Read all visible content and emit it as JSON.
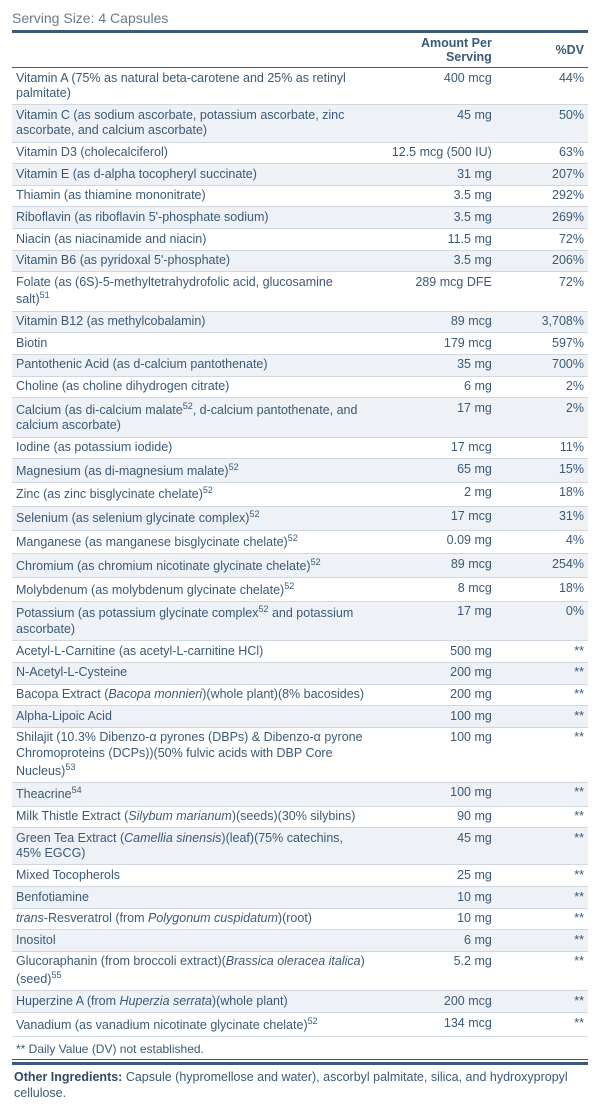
{
  "serving_size_label": "Serving Size: 4 Capsules",
  "headers": {
    "name": "",
    "amount": "Amount Per Serving",
    "dv": "%DV"
  },
  "footnote": "** Daily Value (DV) not established.",
  "other_label": "Other Ingredients:",
  "other_text": " Capsule (hypromellose and water), ascorbyl palmitate, silica, and hydroxypropyl cellulose.",
  "rows": [
    {
      "name": "Vitamin A (75% as natural beta-carotene and 25% as retinyl palmitate)",
      "amount": "400 mcg",
      "dv": "44%"
    },
    {
      "name": "Vitamin C (as sodium ascorbate, potassium ascorbate, zinc ascorbate, and calcium ascorbate)",
      "amount": "45 mg",
      "dv": "50%",
      "alt": true
    },
    {
      "name": "Vitamin D3 (cholecalciferol)",
      "amount": "12.5 mcg (500 IU)",
      "dv": "63%"
    },
    {
      "name": "Vitamin E (as d-alpha tocopheryl succinate)",
      "amount": "31 mg",
      "dv": "207%",
      "alt": true
    },
    {
      "name": "Thiamin (as thiamine mononitrate)",
      "amount": "3.5 mg",
      "dv": "292%"
    },
    {
      "name": "Riboflavin (as riboflavin 5'-phosphate sodium)",
      "amount": "3.5 mg",
      "dv": "269%",
      "alt": true
    },
    {
      "name": "Niacin (as niacinamide and niacin)",
      "amount": "11.5 mg",
      "dv": "72%"
    },
    {
      "name": "Vitamin B6 (as pyridoxal 5'-phosphate)",
      "amount": "3.5 mg",
      "dv": "206%",
      "alt": true
    },
    {
      "name": "Folate (as (6S)-5-methyltetrahydrofolic acid, glucosamine salt)",
      "sup": "51",
      "amount": "289 mcg DFE",
      "dv": "72%"
    },
    {
      "name": "Vitamin B12 (as methylcobalamin)",
      "amount": "89 mcg",
      "dv": "3,708%",
      "alt": true
    },
    {
      "name": "Biotin",
      "amount": "179 mcg",
      "dv": "597%"
    },
    {
      "name": "Pantothenic Acid (as d-calcium pantothenate)",
      "amount": "35 mg",
      "dv": "700%",
      "alt": true
    },
    {
      "name": "Choline (as choline dihydrogen citrate)",
      "amount": "6 mg",
      "dv": "2%"
    },
    {
      "name": "Calcium (as di-calcium malate",
      "sup": "52",
      "name_after": ", d-calcium pantothenate, and calcium ascorbate)",
      "amount": "17 mg",
      "dv": "2%",
      "alt": true
    },
    {
      "name": "Iodine (as potassium iodide)",
      "amount": "17 mcg",
      "dv": "11%"
    },
    {
      "name": "Magnesium (as di-magnesium malate)",
      "sup": "52",
      "amount": "65 mg",
      "dv": "15%",
      "alt": true
    },
    {
      "name": "Zinc (as zinc bisglycinate chelate)",
      "sup": "52",
      "amount": "2 mg",
      "dv": "18%"
    },
    {
      "name": "Selenium (as selenium glycinate complex)",
      "sup": "52",
      "amount": "17 mcg",
      "dv": "31%",
      "alt": true
    },
    {
      "name": "Manganese (as manganese bisglycinate chelate)",
      "sup": "52",
      "amount": "0.09 mg",
      "dv": "4%"
    },
    {
      "name": "Chromium (as chromium nicotinate glycinate chelate)",
      "sup": "52",
      "amount": "89 mcg",
      "dv": "254%",
      "alt": true
    },
    {
      "name": "Molybdenum (as molybdenum glycinate chelate)",
      "sup": "52",
      "amount": "8 mcg",
      "dv": "18%"
    },
    {
      "name": "Potassium (as potassium glycinate complex",
      "sup": "52",
      "name_after": " and potassium ascorbate)",
      "amount": "17 mg",
      "dv": "0%",
      "alt": true
    },
    {
      "name": "Acetyl-L-Carnitine (as acetyl-L-carnitine HCl)",
      "amount": "500 mg",
      "dv": "**"
    },
    {
      "name": "N-Acetyl-L-Cysteine",
      "amount": "200 mg",
      "dv": "**",
      "alt": true
    },
    {
      "name_html": "Bacopa Extract (<em>Bacopa monnieri</em>)(whole plant)(8% bacosides)",
      "amount": "200 mg",
      "dv": "**"
    },
    {
      "name": "Alpha-Lipoic Acid",
      "amount": "100 mg",
      "dv": "**",
      "alt": true
    },
    {
      "name_html": "Shilajit (10.3% Dibenzo-α pyrones (DBPs) & Dibenzo-α pyrone Chromoproteins (DCPs))(50% fulvic acids with DBP Core Nucleus)<span class=\"sup\">53</span>",
      "amount": "100 mg",
      "dv": "**"
    },
    {
      "name": "Theacrine",
      "sup": "54",
      "amount": "100 mg",
      "dv": "**",
      "alt": true
    },
    {
      "name_html": "Milk Thistle Extract (<em>Silybum marianum</em>)(seeds)(30% silybins)",
      "amount": "90 mg",
      "dv": "**"
    },
    {
      "name_html": "Green Tea Extract (<em>Camellia sinensis</em>)(leaf)(75% catechins, 45% EGCG)",
      "amount": "45 mg",
      "dv": "**",
      "alt": true
    },
    {
      "name": "Mixed Tocopherols",
      "amount": "25 mg",
      "dv": "**"
    },
    {
      "name": "Benfotiamine",
      "amount": "10 mg",
      "dv": "**",
      "alt": true
    },
    {
      "name_html": "<em>trans</em>-Resveratrol (from <em>Polygonum cuspidatum</em>)(root)",
      "amount": "10 mg",
      "dv": "**"
    },
    {
      "name": "Inositol",
      "amount": "6 mg",
      "dv": "**",
      "alt": true
    },
    {
      "name_html": "Glucoraphanin (from broccoli extract)(<em>Brassica oleracea italica</em>)(seed)<span class=\"sup\">55</span>",
      "amount": "5.2 mg",
      "dv": "**"
    },
    {
      "name_html": "Huperzine A (from <em>Huperzia serrata</em>)(whole plant)",
      "amount": "200 mcg",
      "dv": "**",
      "alt": true
    },
    {
      "name": "Vanadium (as vanadium nicotinate glycinate chelate)",
      "sup": "52",
      "amount": "134 mcg",
      "dv": "**"
    }
  ]
}
